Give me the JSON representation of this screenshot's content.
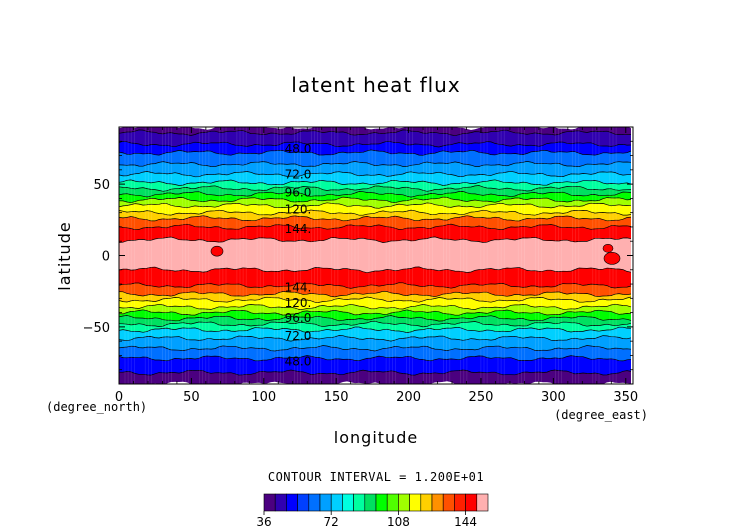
{
  "chart_data": {
    "type": "contour",
    "title": "latent heat flux",
    "xlabel": "longitude",
    "ylabel": "latitude",
    "x_unit_label": "(degree_east)",
    "y_unit_label": "(degree_north)",
    "xlim": [
      0,
      355
    ],
    "ylim": [
      -90,
      90
    ],
    "x_ticks": [
      {
        "value": 0,
        "label": "0"
      },
      {
        "value": 50,
        "label": "50"
      },
      {
        "value": 100,
        "label": "100"
      },
      {
        "value": 150,
        "label": "150"
      },
      {
        "value": 200,
        "label": "200"
      },
      {
        "value": 250,
        "label": "250"
      },
      {
        "value": 300,
        "label": "300"
      },
      {
        "value": 350,
        "label": "350"
      }
    ],
    "y_ticks": [
      {
        "value": 50,
        "label": "50"
      },
      {
        "value": 0,
        "label": "0"
      },
      {
        "value": -50,
        "label": "−50"
      }
    ],
    "contour_interval_text": "CONTOUR INTERVAL = 1.200E+01",
    "contour_labels": [
      {
        "text": "48.0",
        "lat": 75
      },
      {
        "text": "72.0",
        "lat": 57
      },
      {
        "text": "96.0",
        "lat": 44.5
      },
      {
        "text": "120.",
        "lat": 32.5
      },
      {
        "text": "144.",
        "lat": 19
      },
      {
        "text": "144.",
        "lat": -22
      },
      {
        "text": "120.",
        "lat": -33
      },
      {
        "text": "96.0",
        "lat": -43.5
      },
      {
        "text": "72.0",
        "lat": -56
      },
      {
        "text": "48.0",
        "lat": -74
      }
    ],
    "bands": [
      {
        "lat_top": 90,
        "lat_bottom": 86,
        "level": 36
      },
      {
        "lat_top": 86,
        "lat_bottom": 78,
        "level": 42
      },
      {
        "lat_top": 78,
        "lat_bottom": 72,
        "level": 48
      },
      {
        "lat_top": 72,
        "lat_bottom": 64,
        "level": 60
      },
      {
        "lat_top": 64,
        "lat_bottom": 57,
        "level": 66
      },
      {
        "lat_top": 57,
        "lat_bottom": 51,
        "level": 72
      },
      {
        "lat_top": 51,
        "lat_bottom": 47,
        "level": 84
      },
      {
        "lat_top": 47,
        "lat_bottom": 43,
        "level": 90
      },
      {
        "lat_top": 43,
        "lat_bottom": 39,
        "level": 96
      },
      {
        "lat_top": 39,
        "lat_bottom": 35,
        "level": 108
      },
      {
        "lat_top": 35,
        "lat_bottom": 30,
        "level": 114
      },
      {
        "lat_top": 30,
        "lat_bottom": 26,
        "level": 120
      },
      {
        "lat_top": 26,
        "lat_bottom": 20,
        "level": 132
      },
      {
        "lat_top": 20,
        "lat_bottom": 11,
        "level": 144
      },
      {
        "lat_top": 11,
        "lat_bottom": -10,
        "level": 150
      },
      {
        "lat_top": -10,
        "lat_bottom": -21,
        "level": 144
      },
      {
        "lat_top": -21,
        "lat_bottom": -27,
        "level": 132
      },
      {
        "lat_top": -27,
        "lat_bottom": -31,
        "level": 120
      },
      {
        "lat_top": -31,
        "lat_bottom": -36,
        "level": 114
      },
      {
        "lat_top": -36,
        "lat_bottom": -40,
        "level": 108
      },
      {
        "lat_top": -40,
        "lat_bottom": -44,
        "level": 96
      },
      {
        "lat_top": -44,
        "lat_bottom": -48,
        "level": 90
      },
      {
        "lat_top": -48,
        "lat_bottom": -52,
        "level": 84
      },
      {
        "lat_top": -52,
        "lat_bottom": -58,
        "level": 72
      },
      {
        "lat_top": -58,
        "lat_bottom": -65,
        "level": 66
      },
      {
        "lat_top": -65,
        "lat_bottom": -72,
        "level": 60
      },
      {
        "lat_top": -72,
        "lat_bottom": -82,
        "level": 48
      },
      {
        "lat_top": -82,
        "lat_bottom": -90,
        "level": 36
      }
    ],
    "colorbar": {
      "levels": [
        36,
        42,
        48,
        54,
        60,
        66,
        72,
        78,
        84,
        90,
        96,
        102,
        108,
        114,
        120,
        126,
        132,
        138,
        144,
        150
      ],
      "colors": [
        "#4b0080",
        "#3000b0",
        "#0000ff",
        "#0040ff",
        "#0070ff",
        "#00a0ff",
        "#00d0ff",
        "#00ffe0",
        "#00ffa0",
        "#00e060",
        "#00ff00",
        "#50ff00",
        "#a0ff00",
        "#ffff00",
        "#ffd000",
        "#ff9000",
        "#ff5000",
        "#ff2000",
        "#ff0000",
        "#ffb0b0"
      ],
      "tick_labels": [
        {
          "value": 36,
          "label": "36"
        },
        {
          "value": 72,
          "label": "72"
        },
        {
          "value": 108,
          "label": "108"
        },
        {
          "value": 144,
          "label": "144"
        }
      ]
    }
  }
}
